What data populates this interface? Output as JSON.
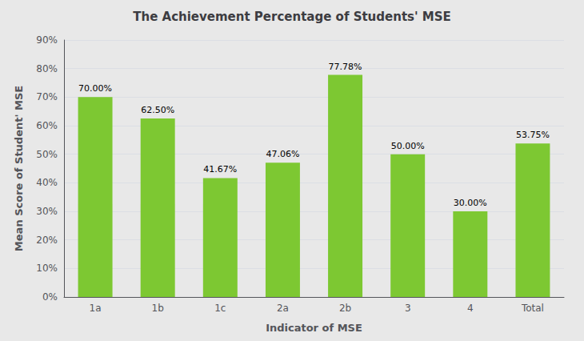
{
  "chart_data": {
    "type": "bar",
    "title": "The Achievement Percentage of Students' MSE",
    "xlabel": "Indicator of MSE",
    "ylabel": "Mean Score of Student' MSE",
    "categories": [
      "1a",
      "1b",
      "1c",
      "2a",
      "2b",
      "3",
      "4",
      "Total"
    ],
    "values": [
      70.0,
      62.5,
      41.67,
      47.06,
      77.78,
      50.0,
      30.0,
      53.75
    ],
    "value_labels": [
      "70.00%",
      "62.50%",
      "41.67%",
      "47.06%",
      "77.78%",
      "50.00%",
      "30.00%",
      "53.75%"
    ],
    "data_labels": true,
    "color": "#7dc832",
    "ylim": [
      0,
      90
    ],
    "yticks": [
      {
        "value": 0,
        "label": "0%"
      },
      {
        "value": 10,
        "label": "10%"
      },
      {
        "value": 20,
        "label": "20%"
      },
      {
        "value": 30,
        "label": "30%"
      },
      {
        "value": 40,
        "label": "40%"
      },
      {
        "value": 50,
        "label": "50%"
      },
      {
        "value": 60,
        "label": "60%"
      },
      {
        "value": 70,
        "label": "70%"
      },
      {
        "value": 80,
        "label": "80%"
      },
      {
        "value": 90,
        "label": "90%"
      }
    ],
    "grid": true
  }
}
